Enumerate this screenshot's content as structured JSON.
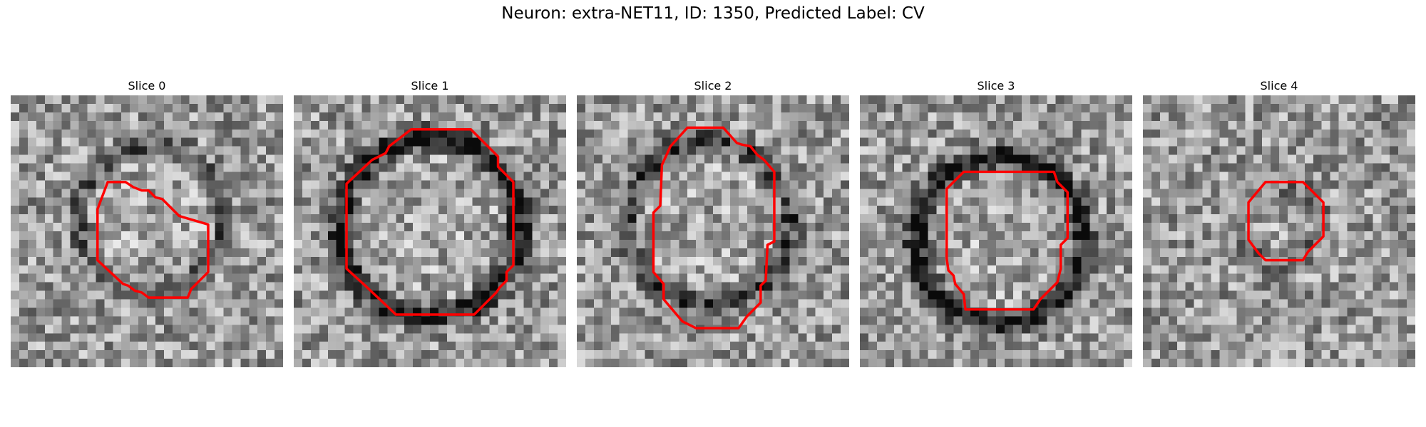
{
  "figure": {
    "title": "Neuron: extra-NET11, ID: 1350, Predicted Label: CV"
  },
  "grid": {
    "size": 32
  },
  "slices": [
    {
      "label": "Slice 0",
      "outline_color": "#ff0000",
      "ring": {
        "cx": 16.5,
        "cy": 14.5,
        "r": 8.5,
        "strength": 0.35
      },
      "seed": 11,
      "contour": [
        [
          11.4,
          10.2
        ],
        [
          13.5,
          10.2
        ],
        [
          14.4,
          10.8
        ],
        [
          15.4,
          11.2
        ],
        [
          16.2,
          11.2
        ],
        [
          17.0,
          12.0
        ],
        [
          17.8,
          12.2
        ],
        [
          19.8,
          14.2
        ],
        [
          23.2,
          15.2
        ],
        [
          23.2,
          20.8
        ],
        [
          21.2,
          22.8
        ],
        [
          20.8,
          23.8
        ],
        [
          16.2,
          23.8
        ],
        [
          15.4,
          23.2
        ],
        [
          14.6,
          23.0
        ],
        [
          13.8,
          22.4
        ],
        [
          13.2,
          22.2
        ],
        [
          10.2,
          19.4
        ],
        [
          10.2,
          13.4
        ]
      ]
    },
    {
      "label": "Slice 1",
      "outline_color": "#ff0000",
      "ring": {
        "cx": 16.0,
        "cy": 15.5,
        "r": 10.5,
        "strength": 0.75
      },
      "seed": 23,
      "contour": [
        [
          13.8,
          4.0
        ],
        [
          20.8,
          4.0
        ],
        [
          24.0,
          7.2
        ],
        [
          24.0,
          8.4
        ],
        [
          25.8,
          10.2
        ],
        [
          25.8,
          17.6
        ],
        [
          25.8,
          20.0
        ],
        [
          25.0,
          20.8
        ],
        [
          25.0,
          21.8
        ],
        [
          24.2,
          22.6
        ],
        [
          23.8,
          23.2
        ],
        [
          22.2,
          24.8
        ],
        [
          21.2,
          25.8
        ],
        [
          12.0,
          25.8
        ],
        [
          8.4,
          22.4
        ],
        [
          6.2,
          20.4
        ],
        [
          6.2,
          10.4
        ],
        [
          9.2,
          7.6
        ],
        [
          10.8,
          6.8
        ],
        [
          11.2,
          6.0
        ]
      ]
    },
    {
      "label": "Slice 2",
      "outline_color": "#ff0000",
      "ring": {
        "cx": 15.5,
        "cy": 15.0,
        "r": 9.5,
        "strength": 0.5
      },
      "seed": 37,
      "contour": [
        [
          13.0,
          3.8
        ],
        [
          17.2,
          3.8
        ],
        [
          18.8,
          5.6
        ],
        [
          19.4,
          5.8
        ],
        [
          20.4,
          6.0
        ],
        [
          21.2,
          7.0
        ],
        [
          22.0,
          7.6
        ],
        [
          23.2,
          9.0
        ],
        [
          23.2,
          17.2
        ],
        [
          22.4,
          17.6
        ],
        [
          22.2,
          21.8
        ],
        [
          21.6,
          22.4
        ],
        [
          21.6,
          24.4
        ],
        [
          20.0,
          26.0
        ],
        [
          19.0,
          27.4
        ],
        [
          14.0,
          27.4
        ],
        [
          12.4,
          26.6
        ],
        [
          10.2,
          24.0
        ],
        [
          10.2,
          22.2
        ],
        [
          9.0,
          20.8
        ],
        [
          9.0,
          13.8
        ],
        [
          9.8,
          13.0
        ],
        [
          10.0,
          8.2
        ],
        [
          11.0,
          6.0
        ]
      ]
    },
    {
      "label": "Slice 3",
      "outline_color": "#ff0000",
      "ring": {
        "cx": 16.5,
        "cy": 17.0,
        "r": 9.8,
        "strength": 0.8
      },
      "seed": 53,
      "contour": [
        [
          12.2,
          9.0
        ],
        [
          13.8,
          9.0
        ],
        [
          14.8,
          9.0
        ],
        [
          22.8,
          9.0
        ],
        [
          23.2,
          10.2
        ],
        [
          24.4,
          11.4
        ],
        [
          24.4,
          16.8
        ],
        [
          23.6,
          17.6
        ],
        [
          23.6,
          20.4
        ],
        [
          23.2,
          22.0
        ],
        [
          21.2,
          24.0
        ],
        [
          20.4,
          25.2
        ],
        [
          12.4,
          25.2
        ],
        [
          12.2,
          23.4
        ],
        [
          11.2,
          22.2
        ],
        [
          11.0,
          21.2
        ],
        [
          10.4,
          20.6
        ],
        [
          10.2,
          19.2
        ],
        [
          10.2,
          11.0
        ]
      ]
    },
    {
      "label": "Slice 4",
      "outline_color": "#ff0000",
      "ring": {
        "cx": 16.0,
        "cy": 15.0,
        "r": 4.5,
        "strength": 0.2
      },
      "seed": 71,
      "contour": [
        [
          14.4,
          10.2
        ],
        [
          18.8,
          10.2
        ],
        [
          21.2,
          12.6
        ],
        [
          21.2,
          16.6
        ],
        [
          19.4,
          18.4
        ],
        [
          18.8,
          19.4
        ],
        [
          14.4,
          19.4
        ],
        [
          13.6,
          18.6
        ],
        [
          12.4,
          17.0
        ],
        [
          12.4,
          12.6
        ]
      ]
    }
  ]
}
